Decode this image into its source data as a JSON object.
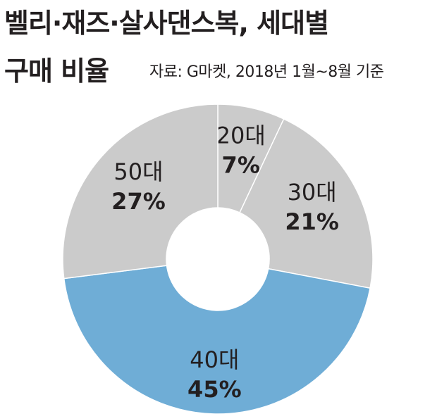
{
  "chart_data": {
    "type": "pie",
    "title_lines": [
      "벨리·재즈·살사댄스복, 세대별",
      "구매 비율"
    ],
    "source": "자료: G마켓, 2018년 1월~8월 기준",
    "categories": [
      "20대",
      "30대",
      "40대",
      "50대"
    ],
    "values": [
      7,
      21,
      45,
      27
    ],
    "value_labels": [
      "7%",
      "21%",
      "45%",
      "27%"
    ],
    "unit": "%",
    "colors": [
      "#cbcbcb",
      "#cbcbcb",
      "#6fadd6",
      "#cbcbcb"
    ],
    "donut": true,
    "legend": "none"
  }
}
